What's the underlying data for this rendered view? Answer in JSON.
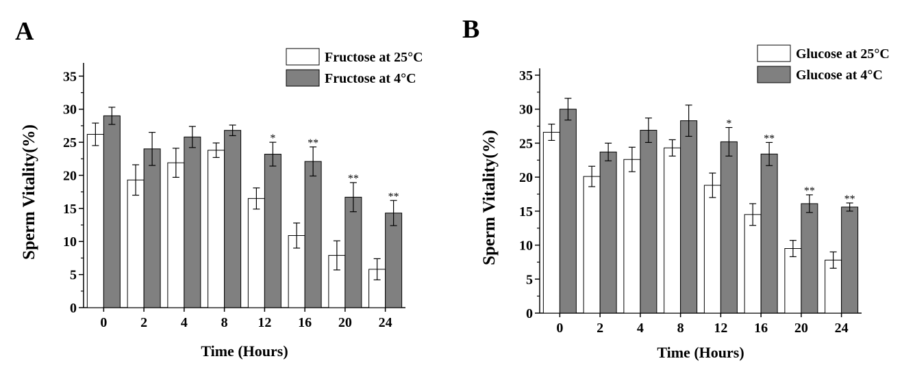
{
  "chart_data": [
    {
      "panel_label": "A",
      "type": "bar",
      "title": "",
      "xlabel": "Time (Hours)",
      "ylabel": "Sperm Vitality(%)",
      "categories": [
        "0",
        "2",
        "4",
        "8",
        "12",
        "16",
        "20",
        "24"
      ],
      "ylim": [
        0,
        37
      ],
      "yticks": [
        0,
        5,
        10,
        15,
        20,
        25,
        30,
        35
      ],
      "grid": false,
      "legend_position": "top-right",
      "series": [
        {
          "name": "Fructose at 25°C",
          "color": "#ffffff",
          "values": [
            26.2,
            19.3,
            21.9,
            23.8,
            16.5,
            10.9,
            7.9,
            5.8
          ],
          "errors": [
            1.7,
            2.3,
            2.2,
            1.1,
            1.6,
            1.9,
            2.2,
            1.6
          ],
          "annotations": [
            "",
            "",
            "",
            "",
            "",
            "",
            "",
            ""
          ]
        },
        {
          "name": "Fructose at 4°C",
          "color": "#808080",
          "values": [
            29.0,
            24.0,
            25.8,
            26.8,
            23.2,
            22.1,
            16.7,
            14.3
          ],
          "errors": [
            1.3,
            2.5,
            1.6,
            0.8,
            1.8,
            2.2,
            2.2,
            1.9
          ],
          "annotations": [
            "",
            "",
            "",
            "",
            "*",
            "**",
            "**",
            "**"
          ]
        }
      ]
    },
    {
      "panel_label": "B",
      "type": "bar",
      "title": "",
      "xlabel": "Time (Hours)",
      "ylabel": "Sperm Vitality(%)",
      "categories": [
        "0",
        "2",
        "4",
        "8",
        "12",
        "16",
        "20",
        "24"
      ],
      "ylim": [
        0,
        36
      ],
      "yticks": [
        0,
        5,
        10,
        15,
        20,
        25,
        30,
        35
      ],
      "grid": false,
      "legend_position": "top-right",
      "series": [
        {
          "name": "Glucose at 25°C",
          "color": "#ffffff",
          "values": [
            26.6,
            20.1,
            22.6,
            24.3,
            18.8,
            14.5,
            9.5,
            7.8
          ],
          "errors": [
            1.2,
            1.5,
            1.8,
            1.2,
            1.8,
            1.6,
            1.2,
            1.2
          ],
          "annotations": [
            "",
            "",
            "",
            "",
            "",
            "",
            "",
            ""
          ]
        },
        {
          "name": "Glucose at 4°C",
          "color": "#808080",
          "values": [
            30.0,
            23.7,
            26.9,
            28.3,
            25.2,
            23.4,
            16.1,
            15.6
          ],
          "errors": [
            1.6,
            1.3,
            1.8,
            2.3,
            2.1,
            1.7,
            1.3,
            0.6
          ],
          "annotations": [
            "",
            "",
            "",
            "",
            "*",
            "**",
            "**",
            "**"
          ]
        }
      ]
    }
  ]
}
